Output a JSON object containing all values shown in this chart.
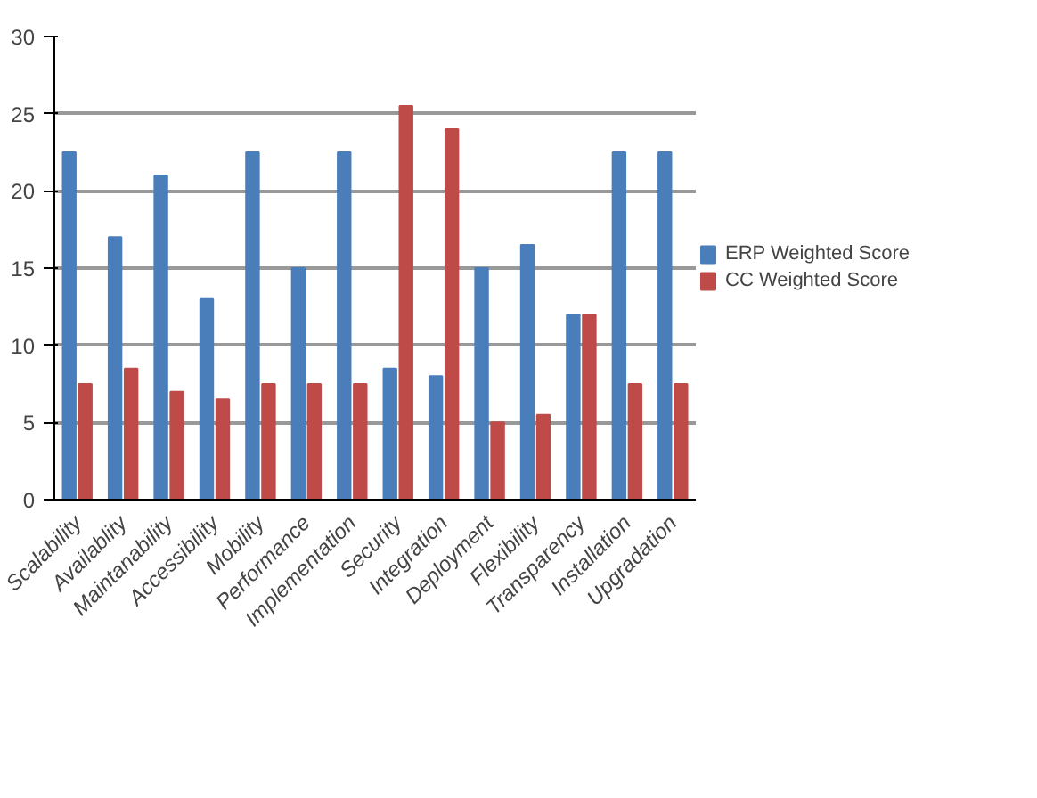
{
  "chart_data": {
    "type": "bar",
    "categories": [
      "Scalability",
      "Availablity",
      "Maintanability",
      "Accessibility",
      "Mobility",
      "Performance",
      "Implementation",
      "Security",
      "Integration",
      "Deployment",
      "Flexibility",
      "Transparency",
      "Installation",
      "Upgradation"
    ],
    "series": [
      {
        "name": "ERP Weighted Score",
        "color": "#4a7ebb",
        "values": [
          22.5,
          17,
          21,
          13,
          22.5,
          15,
          22.5,
          8.5,
          8,
          15,
          16.5,
          12,
          22.5,
          22.5
        ]
      },
      {
        "name": "CC Weighted Score",
        "color": "#be4b48",
        "values": [
          7.5,
          8.5,
          7,
          6.5,
          7.5,
          7.5,
          7.5,
          25.5,
          24,
          5,
          5.5,
          12,
          7.5,
          7.5
        ]
      }
    ],
    "ylim": [
      0,
      30
    ],
    "yticks": [
      0,
      5,
      10,
      15,
      20,
      25,
      30
    ],
    "grid": "y",
    "legend": "right"
  }
}
